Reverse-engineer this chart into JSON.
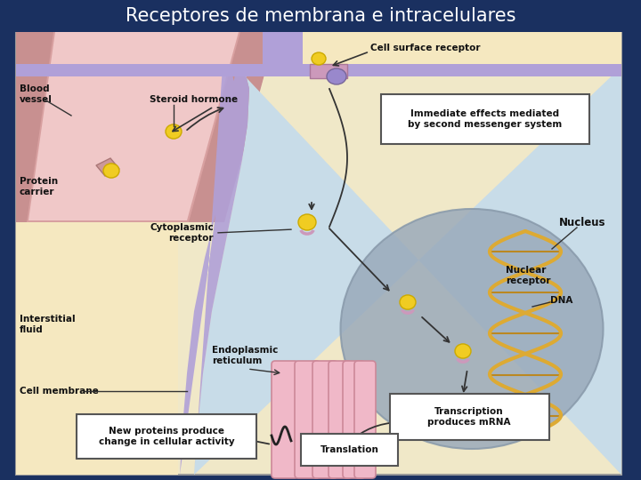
{
  "title": "Receptores de membrana e intracelulares",
  "title_fontsize": 15,
  "title_color": "white",
  "background_color": "#1a3060",
  "fig_width": 7.2,
  "fig_height": 5.4,
  "diagram_bg": "#f0e8c8",
  "cell_bg": "#c8dce8",
  "nucleus_color": "#9aabcc",
  "membrane_color": "#b0a0d8",
  "vessel_outer": "#d8a0a0",
  "vessel_inner": "#f0c8c8",
  "interstitial_color": "#f5e8c0",
  "er_color": "#f0b8c8",
  "er_edge": "#cc8899",
  "hormone_color": "#f0cc22",
  "hormone_edge": "#ccaa00",
  "receptor_color": "#cc99bb",
  "receptor_edge": "#aa7799",
  "purple_receptor": "#9988cc",
  "carrier_color": "#cc9999",
  "mrna_color": "#44aa55",
  "dna_color": "#ddaa33",
  "box_edge": "#555555",
  "label_color": "#111111",
  "arrow_color": "#333333",
  "labels": {
    "blood_vessel": "Blood\nvessel",
    "steroid_hormone": "Steroid hormone",
    "cell_surface_receptor": "Cell surface receptor",
    "immediate_effects": "Immediate effects mediated\nby second messenger system",
    "protein_carrier": "Protein\ncarrier",
    "cytoplasmic_receptor": "Cytoplasmic\nreceptor",
    "nucleus": "Nucleus",
    "nuclear_receptor": "Nuclear\nreceptor",
    "dna": "DNA",
    "interstitial_fluid": "Interstitial\nfluid",
    "endoplasmic_reticulum": "Endoplasmic\nreticulum",
    "cell_membrane": "Cell membrane",
    "transcription": "Transcription\nproduces mRNA",
    "translation": "Translation",
    "new_proteins": "New proteins produce\nchange in cellular activity"
  }
}
